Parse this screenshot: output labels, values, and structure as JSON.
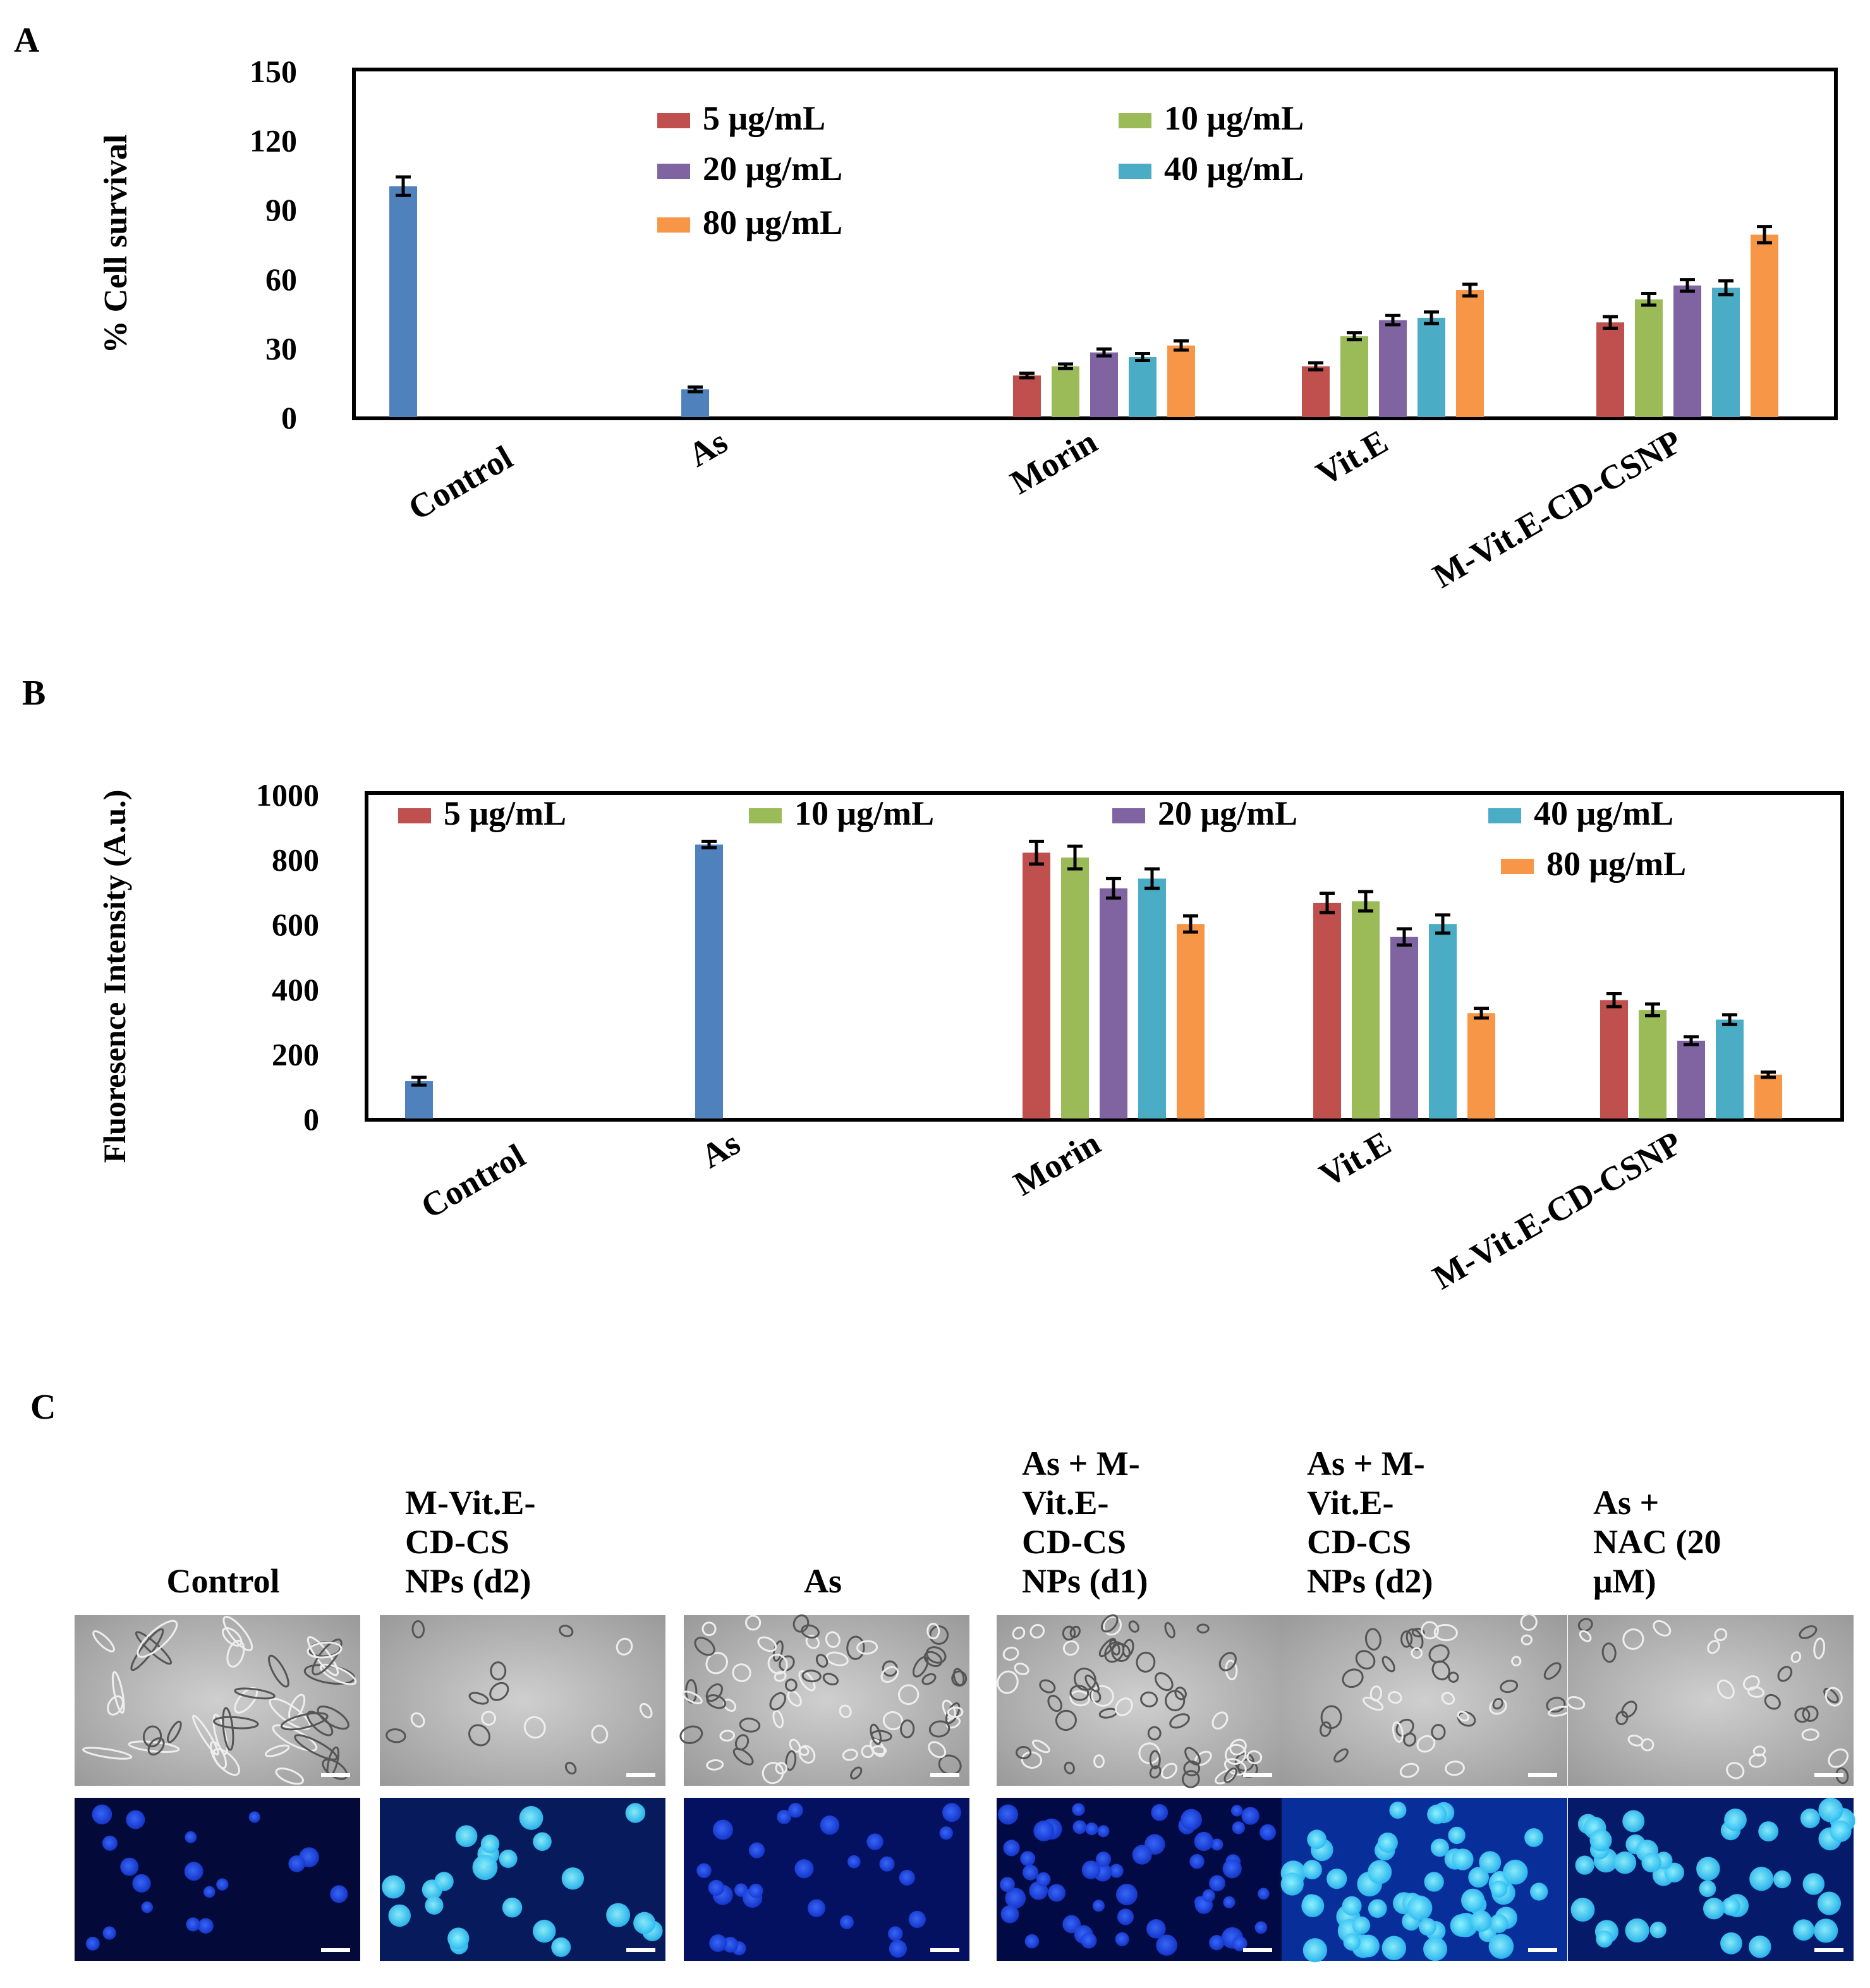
{
  "panel_labels": {
    "a": "A",
    "b": "B",
    "c": "C"
  },
  "colors": {
    "single": "#4f81bd",
    "c5": "#c0504d",
    "c10": "#9bbb59",
    "c20": "#8064a2",
    "c40": "#4bacc6",
    "c80": "#f79646",
    "axis": "#000000"
  },
  "chart_data": [
    {
      "type": "bar",
      "panel": "A",
      "ylabel": "% Cell survival",
      "xlabel": "",
      "ylim": [
        0,
        150
      ],
      "yticks": [
        0,
        30,
        60,
        90,
        120,
        150
      ],
      "categories": [
        "Control",
        "As",
        "Morin",
        "Vit.E",
        "M-Vit.E-CD-CSNP"
      ],
      "legend": [
        "5 μg/mL",
        "10 μg/mL",
        "20 μg/mL",
        "40 μg/mL",
        "80 μg/mL"
      ],
      "single": [
        {
          "category": "Control",
          "value": 100,
          "err": 4
        },
        {
          "category": "As",
          "value": 12,
          "err": 1
        }
      ],
      "series": [
        {
          "name": "5 μg/mL",
          "values": [
            null,
            null,
            18,
            22,
            41
          ],
          "errors": [
            null,
            null,
            1,
            1.5,
            2.5
          ]
        },
        {
          "name": "10 μg/mL",
          "values": [
            null,
            null,
            22,
            35,
            51
          ],
          "errors": [
            null,
            null,
            1,
            1.5,
            2.5
          ]
        },
        {
          "name": "20 μg/mL",
          "values": [
            null,
            null,
            28,
            42,
            57
          ],
          "errors": [
            null,
            null,
            1.5,
            2,
            2.5
          ]
        },
        {
          "name": "40 μg/mL",
          "values": [
            null,
            null,
            26,
            43,
            56
          ],
          "errors": [
            null,
            null,
            1.5,
            2.5,
            3
          ]
        },
        {
          "name": "80 μg/mL",
          "values": [
            null,
            null,
            31,
            55,
            79
          ],
          "errors": [
            null,
            null,
            2,
            2.5,
            3.5
          ]
        }
      ]
    },
    {
      "type": "bar",
      "panel": "B",
      "ylabel": "Fluoresence Intensity (A.u.)",
      "xlabel": "",
      "ylim": [
        0,
        1000
      ],
      "yticks": [
        0,
        200,
        400,
        600,
        800,
        1000
      ],
      "categories": [
        "Control",
        "As",
        "Morin",
        "Vit.E",
        "M-Vit.E-CD-CSNP"
      ],
      "legend": [
        "5 μg/mL",
        "10 μg/mL",
        "20 μg/mL",
        "40 μg/mL",
        "80 μg/mL"
      ],
      "single": [
        {
          "category": "Control",
          "value": 115,
          "err": 12
        },
        {
          "category": "As",
          "value": 845,
          "err": 10
        }
      ],
      "series": [
        {
          "name": "5 μg/mL",
          "values": [
            null,
            null,
            820,
            665,
            365
          ],
          "errors": [
            null,
            null,
            35,
            30,
            20
          ]
        },
        {
          "name": "10 μg/mL",
          "values": [
            null,
            null,
            805,
            670,
            335
          ],
          "errors": [
            null,
            null,
            35,
            30,
            18
          ]
        },
        {
          "name": "20 μg/mL",
          "values": [
            null,
            null,
            710,
            560,
            240
          ],
          "errors": [
            null,
            null,
            30,
            25,
            12
          ]
        },
        {
          "name": "40 μg/mL",
          "values": [
            null,
            null,
            740,
            600,
            305
          ],
          "errors": [
            null,
            null,
            30,
            28,
            15
          ]
        },
        {
          "name": "80 μg/mL",
          "values": [
            null,
            null,
            600,
            325,
            135
          ],
          "errors": [
            null,
            null,
            25,
            15,
            8
          ]
        }
      ]
    }
  ],
  "panel_c": {
    "columns": [
      {
        "label": "Control",
        "lines": [
          "Control"
        ]
      },
      {
        "label": "M-Vit.E-CD-CS NPs (d2)",
        "lines": [
          "M-Vit.E-",
          "CD-CS",
          "NPs (d2)"
        ]
      },
      {
        "label": "As",
        "lines": [
          "As"
        ]
      },
      {
        "label": "As + M-Vit.E-CD-CS NPs (d1)",
        "lines": [
          "As + M-",
          "Vit.E-",
          "CD-CS",
          "NPs (d1)"
        ]
      },
      {
        "label": "As + M-Vit.E-CD-CS NPs (d2)",
        "lines": [
          "As + M-",
          "Vit.E-",
          "CD-CS",
          "NPs (d2)"
        ]
      },
      {
        "label": "As + NAC (20 μM)",
        "lines": [
          "As +",
          "NAC (20",
          "μM)"
        ]
      }
    ],
    "rows": [
      "brightfield",
      "dapi-fluorescence"
    ]
  }
}
